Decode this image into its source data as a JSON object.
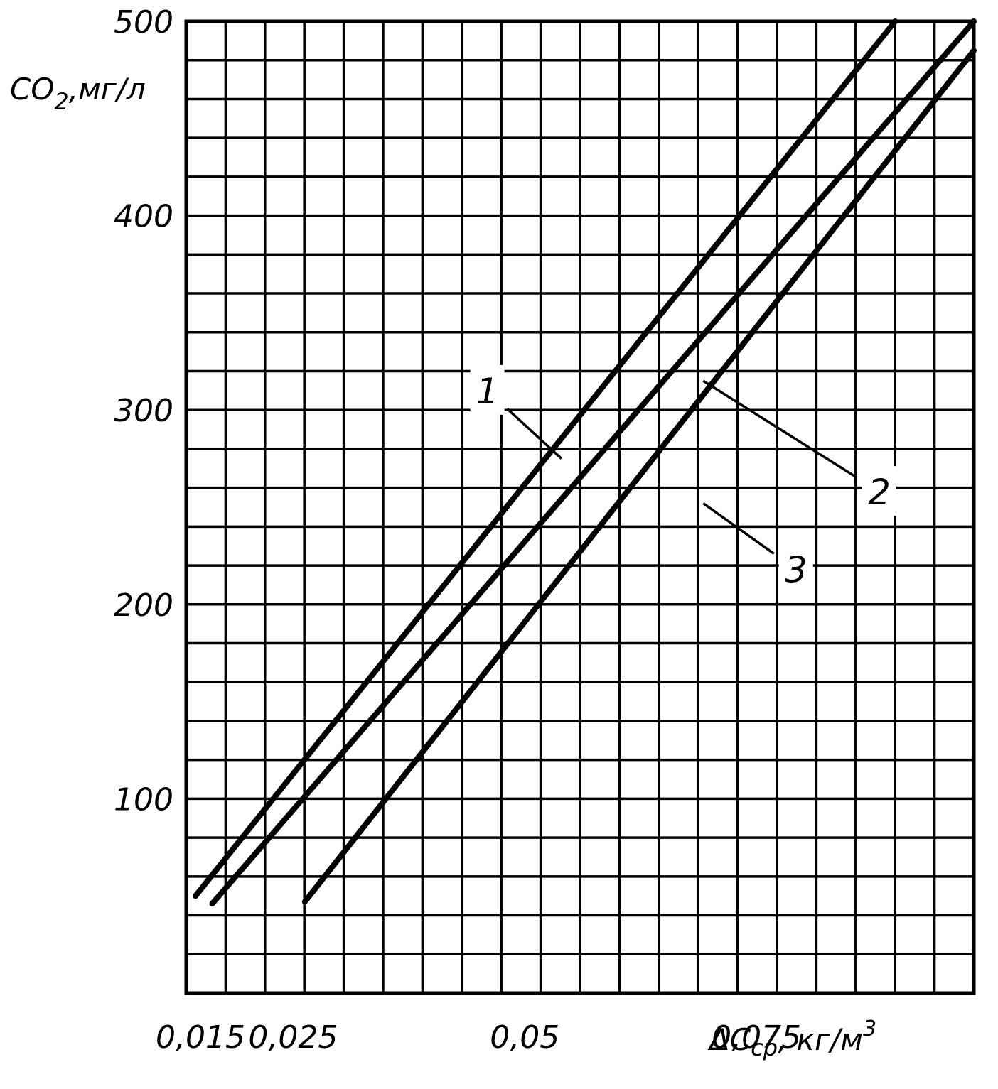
{
  "chart_data": {
    "type": "line",
    "title": "",
    "ylabel_main": "CO",
    "ylabel_sub": "2",
    "ylabel_unit": ",мг/л",
    "xlabel_main": "ΔC",
    "xlabel_sub": "ср",
    "xlabel_unit": ", кг/м",
    "xlabel_sup": "3",
    "xlim": [
      0.015,
      0.1
    ],
    "ylim": [
      0,
      500
    ],
    "grid": true,
    "x_ticks": [
      {
        "value": 0.015,
        "label": "0,015"
      },
      {
        "value": 0.025,
        "label": "0,025"
      },
      {
        "value": 0.05,
        "label": "0,05"
      },
      {
        "value": 0.075,
        "label": "0,075"
      }
    ],
    "y_ticks": [
      {
        "value": 100,
        "label": "100"
      },
      {
        "value": 200,
        "label": "200"
      },
      {
        "value": 300,
        "label": "300"
      },
      {
        "value": 400,
        "label": "400"
      },
      {
        "value": 500,
        "label": "500"
      }
    ],
    "series": [
      {
        "label": "1",
        "x": [
          0.016,
          0.0915
        ],
        "y": [
          50,
          500
        ],
        "label_x": 0.0475,
        "label_y": 310,
        "pointer_x": 0.0555,
        "pointer_y": 275
      },
      {
        "label": "2",
        "x": [
          0.0178,
          0.1
        ],
        "y": [
          46,
          500
        ],
        "label_x": 0.0898,
        "label_y": 258,
        "pointer_x": 0.0708,
        "pointer_y": 315
      },
      {
        "label": "3",
        "x": [
          0.0278,
          0.1
        ],
        "y": [
          47,
          485
        ],
        "label_x": 0.0808,
        "label_y": 218,
        "pointer_x": 0.0708,
        "pointer_y": 252
      }
    ]
  }
}
